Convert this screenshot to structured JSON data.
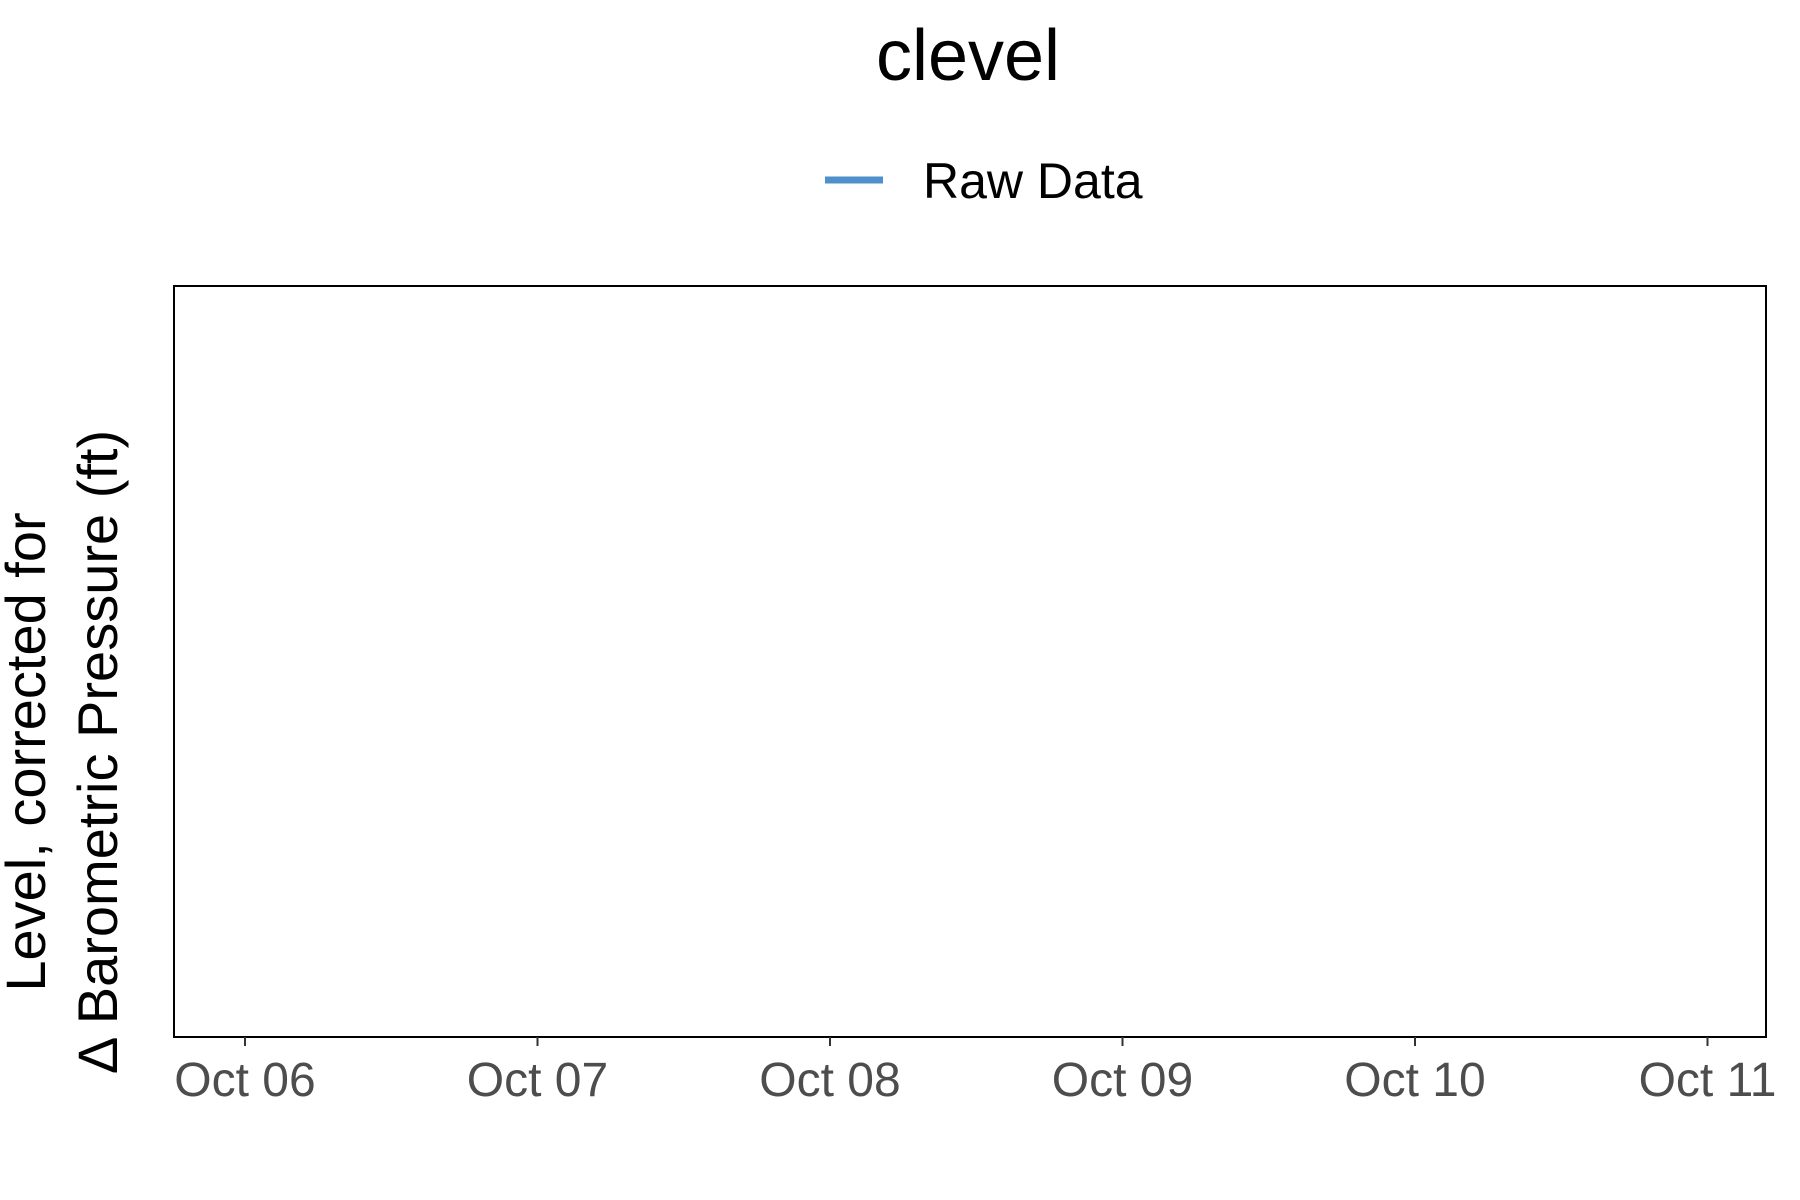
{
  "chart_data": {
    "type": "line",
    "title": "clevel",
    "xlabel": "",
    "ylabel": [
      "Level, corrected for",
      "Δ Barometric Pressure (ft)"
    ],
    "x_ticks": [
      "Oct 06",
      "Oct 07",
      "Oct 08",
      "Oct 09",
      "Oct 10",
      "Oct 11"
    ],
    "xlim": [
      "Oct 05",
      "Oct 11"
    ],
    "series": [
      {
        "name": "Raw Data",
        "color": "#4f8fcc",
        "x": [],
        "y": []
      }
    ],
    "legend": "top-center",
    "grid": false
  }
}
